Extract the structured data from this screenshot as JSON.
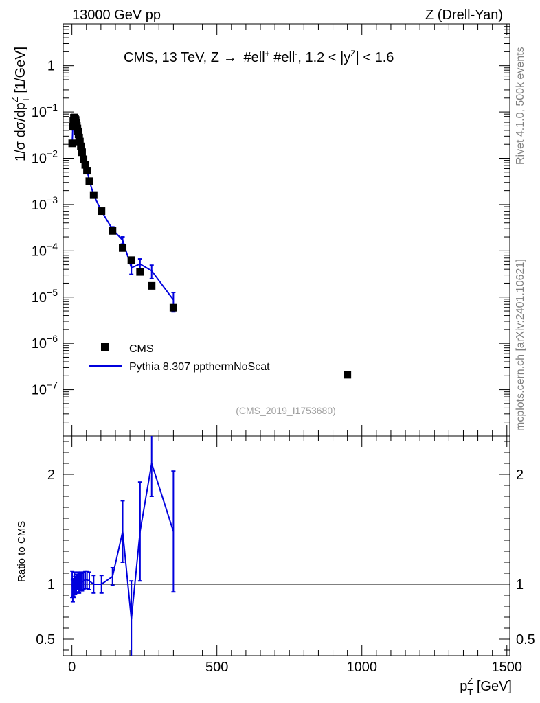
{
  "header": {
    "left": "13000 GeV pp",
    "right": "Z (Drell-Yan)"
  },
  "side_labels": {
    "rivet": "Rivet 4.1.0,  500k events",
    "mcplots": "mcplots.cern.ch [arXiv:2401.10621]"
  },
  "colors": {
    "mc": "#0000dd",
    "data": "#000000",
    "reference": "#a0a0a0"
  },
  "chart_data": [
    {
      "type": "scatter",
      "panel": "main",
      "title": "CMS, 13 TeV, Z →  #ell⁺ #ell⁻, 1.2 < |y^Z| < 1.6",
      "title_parts": {
        "pre": "CMS, 13 TeV, Z",
        "arrow": "→",
        "mid": " #ell",
        "sup1": "+",
        "mid2": " #ell",
        "sup2": "-",
        "post1": ", 1.2 < |y",
        "sup3": "Z",
        "post2": "| < 1.6"
      },
      "ylabel": "1/σ dσ/dp_T^Z [1/GeV]",
      "ylabel_parts": {
        "pre": "1/σ dσ/dp",
        "sub": "T",
        "sup": "Z",
        "post": " [1/GeV]"
      },
      "yscale": "log",
      "xlim": [
        -30,
        1510
      ],
      "ylim_exp": [
        -8.0,
        0.9
      ],
      "y_ticks": [
        {
          "exp": 0,
          "label": "1"
        },
        {
          "exp": -1,
          "base": "10",
          "sup": "−1"
        },
        {
          "exp": -2,
          "base": "10",
          "sup": "−2"
        },
        {
          "exp": -3,
          "base": "10",
          "sup": "−3"
        },
        {
          "exp": -4,
          "base": "10",
          "sup": "−4"
        },
        {
          "exp": -5,
          "base": "10",
          "sup": "−5"
        },
        {
          "exp": -6,
          "base": "10",
          "sup": "−6"
        },
        {
          "exp": -7,
          "base": "10",
          "sup": "−7"
        }
      ],
      "legend": {
        "position": "lower-left",
        "entries": [
          {
            "label": "CMS",
            "marker": "square"
          },
          {
            "label": "Pythia 8.307 ppthermNoScat",
            "marker": "line"
          }
        ]
      },
      "annotation": "(CMS_2019_I1753680)",
      "series": [
        {
          "name": "CMS",
          "points": [
            {
              "x": 1,
              "y": 0.021
            },
            {
              "x": 3,
              "y": 0.048
            },
            {
              "x": 5,
              "y": 0.064
            },
            {
              "x": 7,
              "y": 0.075
            },
            {
              "x": 9,
              "y": 0.076
            },
            {
              "x": 11,
              "y": 0.072
            },
            {
              "x": 13,
              "y": 0.067
            },
            {
              "x": 15,
              "y": 0.058
            },
            {
              "x": 17,
              "y": 0.051
            },
            {
              "x": 19,
              "y": 0.044
            },
            {
              "x": 21,
              "y": 0.038
            },
            {
              "x": 23,
              "y": 0.033
            },
            {
              "x": 25,
              "y": 0.028
            },
            {
              "x": 27.5,
              "y": 0.023
            },
            {
              "x": 31,
              "y": 0.018
            },
            {
              "x": 35,
              "y": 0.0135
            },
            {
              "x": 40,
              "y": 0.0095
            },
            {
              "x": 46,
              "y": 0.0072
            },
            {
              "x": 52,
              "y": 0.0054
            },
            {
              "x": 60,
              "y": 0.0032
            },
            {
              "x": 75,
              "y": 0.0016
            },
            {
              "x": 102,
              "y": 0.00072
            },
            {
              "x": 140,
              "y": 0.00027
            },
            {
              "x": 175,
              "y": 0.000115
            },
            {
              "x": 205,
              "y": 6.3e-05
            },
            {
              "x": 235,
              "y": 3.5e-05
            },
            {
              "x": 275,
              "y": 1.75e-05
            },
            {
              "x": 350,
              "y": 5.9e-06
            },
            {
              "x": 950,
              "y": 2.1e-07
            }
          ]
        },
        {
          "name": "Pythia 8.307 ppthermNoScat",
          "points": [
            {
              "x": 1,
              "y": 0.021,
              "err": 0.002
            },
            {
              "x": 3,
              "y": 0.045,
              "err": 0.004
            },
            {
              "x": 5,
              "y": 0.062,
              "err": 0.005
            },
            {
              "x": 7,
              "y": 0.072,
              "err": 0.005
            },
            {
              "x": 9,
              "y": 0.078,
              "err": 0.006
            },
            {
              "x": 11,
              "y": 0.071,
              "err": 0.005
            },
            {
              "x": 13,
              "y": 0.066,
              "err": 0.005
            },
            {
              "x": 15,
              "y": 0.058,
              "err": 0.005
            },
            {
              "x": 17,
              "y": 0.052,
              "err": 0.004
            },
            {
              "x": 19,
              "y": 0.045,
              "err": 0.004
            },
            {
              "x": 21,
              "y": 0.039,
              "err": 0.003
            },
            {
              "x": 23,
              "y": 0.033,
              "err": 0.003
            },
            {
              "x": 25,
              "y": 0.028,
              "err": 0.002
            },
            {
              "x": 27.5,
              "y": 0.0235,
              "err": 0.002
            },
            {
              "x": 31,
              "y": 0.0185,
              "err": 0.0015
            },
            {
              "x": 35,
              "y": 0.0138,
              "err": 0.0012
            },
            {
              "x": 40,
              "y": 0.0098,
              "err": 0.0008
            },
            {
              "x": 46,
              "y": 0.0075,
              "err": 0.0006
            },
            {
              "x": 52,
              "y": 0.0056,
              "err": 0.0005
            },
            {
              "x": 60,
              "y": 0.0033,
              "err": 0.0003
            },
            {
              "x": 75,
              "y": 0.0016,
              "err": 0.00014
            },
            {
              "x": 102,
              "y": 0.00072,
              "err": 7e-05
            },
            {
              "x": 140,
              "y": 0.00029,
              "err": 4e-05
            },
            {
              "x": 175,
              "y": 0.00017,
              "err": 3e-05
            },
            {
              "x": 205,
              "y": 4.3e-05,
              "err": 1.2e-05
            },
            {
              "x": 235,
              "y": 5.2e-05,
              "err": 1.5e-05
            },
            {
              "x": 275,
              "y": 3.7e-05,
              "err": 1.2e-05
            },
            {
              "x": 350,
              "y": 8.7e-06,
              "err": 3.9e-06
            }
          ]
        }
      ]
    },
    {
      "type": "line",
      "panel": "ratio",
      "ylabel": "Ratio to CMS",
      "xlabel": "p_T^Z [GeV]",
      "xlabel_parts": {
        "pre": "p",
        "sub": "T",
        "sup": "Z",
        "post": " [GeV]"
      },
      "xlim": [
        -30,
        1510
      ],
      "ylim": [
        0.35,
        2.35
      ],
      "y_ticks": [
        {
          "value": 0.5,
          "label": "0.5"
        },
        {
          "value": 1,
          "label": "1"
        },
        {
          "value": 2,
          "label": "2"
        }
      ],
      "x_ticks": [
        {
          "value": 0,
          "label": "0"
        },
        {
          "value": 500,
          "label": "500"
        },
        {
          "value": 1000,
          "label": "1000"
        },
        {
          "value": 1500,
          "label": "1500"
        }
      ],
      "reference_line": 1,
      "series": [
        {
          "name": "Pythia 8.307 ppthermNoScat",
          "points": [
            {
              "x": 1,
              "y": 1.0,
              "err": 0.12
            },
            {
              "x": 3,
              "y": 0.94,
              "err": 0.1
            },
            {
              "x": 5,
              "y": 0.97,
              "err": 0.08
            },
            {
              "x": 7,
              "y": 0.96,
              "err": 0.08
            },
            {
              "x": 9,
              "y": 1.03,
              "err": 0.08
            },
            {
              "x": 11,
              "y": 0.99,
              "err": 0.08
            },
            {
              "x": 13,
              "y": 0.99,
              "err": 0.07
            },
            {
              "x": 15,
              "y": 1.0,
              "err": 0.07
            },
            {
              "x": 17,
              "y": 1.02,
              "err": 0.07
            },
            {
              "x": 19,
              "y": 1.02,
              "err": 0.07
            },
            {
              "x": 21,
              "y": 1.03,
              "err": 0.08
            },
            {
              "x": 23,
              "y": 1.0,
              "err": 0.08
            },
            {
              "x": 25,
              "y": 1.0,
              "err": 0.08
            },
            {
              "x": 27.5,
              "y": 1.02,
              "err": 0.08
            },
            {
              "x": 31,
              "y": 1.03,
              "err": 0.08
            },
            {
              "x": 35,
              "y": 1.02,
              "err": 0.08
            },
            {
              "x": 40,
              "y": 1.03,
              "err": 0.08
            },
            {
              "x": 46,
              "y": 1.04,
              "err": 0.08
            },
            {
              "x": 52,
              "y": 1.04,
              "err": 0.08
            },
            {
              "x": 60,
              "y": 1.03,
              "err": 0.08
            },
            {
              "x": 75,
              "y": 1.0,
              "err": 0.08
            },
            {
              "x": 102,
              "y": 1.0,
              "err": 0.08
            },
            {
              "x": 140,
              "y": 1.07,
              "err": 0.08
            },
            {
              "x": 175,
              "y": 1.48,
              "err": 0.28
            },
            {
              "x": 205,
              "y": 0.68,
              "err": 0.35
            },
            {
              "x": 235,
              "y": 1.48,
              "err": 0.45
            },
            {
              "x": 275,
              "y": 2.1,
              "err": 0.3
            },
            {
              "x": 350,
              "y": 1.48,
              "err": 0.55
            }
          ]
        }
      ]
    }
  ]
}
